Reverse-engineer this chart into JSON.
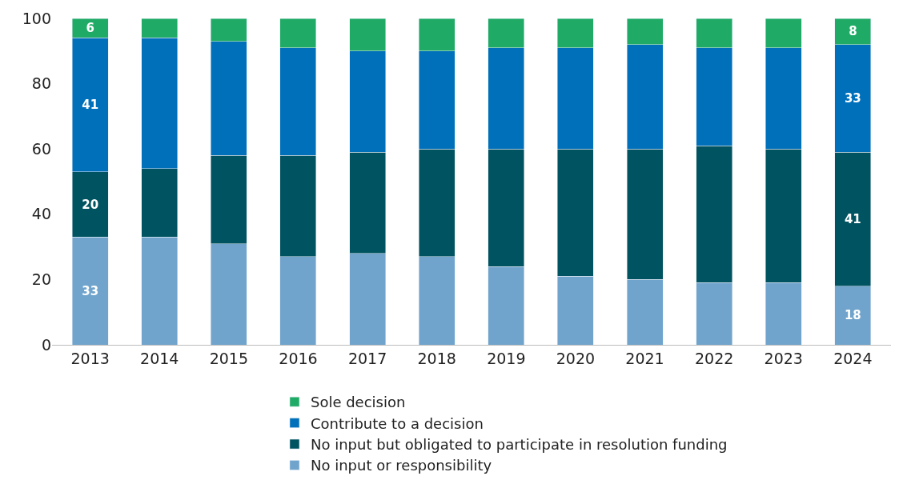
{
  "chart_data": {
    "type": "bar",
    "stacked": true,
    "categories": [
      "2013",
      "2014",
      "2015",
      "2016",
      "2017",
      "2018",
      "2019",
      "2020",
      "2021",
      "2022",
      "2023",
      "2024"
    ],
    "series": [
      {
        "name": "No input or responsibility",
        "color": "#70a4cc",
        "values": [
          33,
          33,
          31,
          27,
          28,
          27,
          24,
          21,
          20,
          19,
          19,
          18
        ],
        "value_labels": [
          "33",
          null,
          null,
          null,
          null,
          null,
          null,
          null,
          null,
          null,
          null,
          "18"
        ]
      },
      {
        "name": "No input but obligated to participate in resolution funding",
        "color": "#005360",
        "values": [
          20,
          21,
          27,
          31,
          31,
          33,
          36,
          39,
          40,
          42,
          41,
          41
        ],
        "value_labels": [
          "20",
          null,
          null,
          null,
          null,
          null,
          null,
          null,
          null,
          null,
          null,
          "41"
        ]
      },
      {
        "name": "Contribute to a decision",
        "color": "#0070bb",
        "values": [
          41,
          40,
          35,
          33,
          31,
          30,
          31,
          31,
          32,
          30,
          31,
          33
        ],
        "value_labels": [
          "41",
          null,
          null,
          null,
          null,
          null,
          null,
          null,
          null,
          null,
          null,
          "33"
        ]
      },
      {
        "name": "Sole decision",
        "color": "#1fab66",
        "values": [
          6,
          6,
          7,
          9,
          10,
          10,
          9,
          9,
          8,
          9,
          9,
          8
        ],
        "value_labels": [
          "6",
          null,
          null,
          null,
          null,
          null,
          null,
          null,
          null,
          null,
          null,
          "8"
        ]
      }
    ],
    "ylim": [
      0,
      100
    ],
    "yticks": [
      0,
      20,
      40,
      60,
      80,
      100
    ],
    "legend": "bottom"
  }
}
